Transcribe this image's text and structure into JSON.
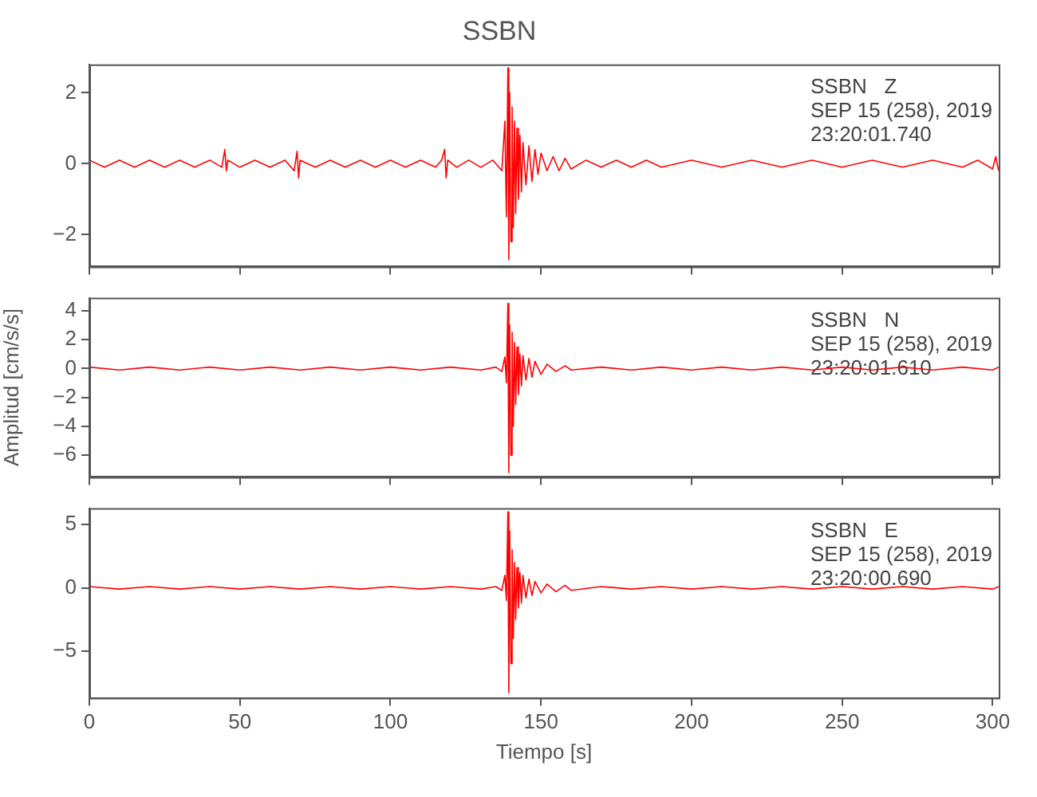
{
  "chart_data": [
    {
      "type": "line",
      "title": "SSBN",
      "marker": "none",
      "line_style": "solid",
      "legend": false,
      "grid": false,
      "tick_labels": "y",
      "xlim": [
        0,
        302
      ],
      "xticks": [
        0,
        50,
        100,
        150,
        200,
        250,
        300
      ],
      "ylim": [
        -2.9,
        2.8
      ],
      "yticks": [
        -2,
        0,
        2
      ],
      "annotations": [
        "SSBN   Z",
        "SEP 15 (258), 2019",
        "23:20:01.740"
      ],
      "series": [
        {
          "color": "#ff0000",
          "x": [
            0,
            5,
            10,
            15,
            20,
            25,
            30,
            35,
            40,
            44,
            45,
            45.5,
            46,
            50,
            55,
            60,
            65,
            68,
            69,
            69.5,
            70,
            75,
            80,
            85,
            90,
            95,
            100,
            105,
            110,
            115,
            117,
            118,
            118.5,
            119,
            122,
            126,
            130,
            134,
            137,
            138,
            138.5,
            139,
            139.3,
            139.6,
            140,
            140.4,
            140.8,
            141.2,
            141.6,
            142,
            142.5,
            143,
            143.5,
            144,
            145,
            146,
            147,
            148,
            149,
            150,
            152,
            154,
            156,
            158,
            160,
            165,
            170,
            175,
            180,
            185,
            190,
            200,
            210,
            220,
            230,
            240,
            250,
            260,
            270,
            280,
            290,
            295,
            300,
            301,
            302
          ],
          "values": [
            0.1,
            -0.1,
            0.1,
            -0.1,
            0.1,
            -0.1,
            0.1,
            -0.1,
            0.1,
            -0.1,
            0.4,
            -0.2,
            0.1,
            -0.1,
            0.1,
            -0.1,
            0.1,
            -0.2,
            0.35,
            -0.4,
            0.1,
            -0.1,
            0.1,
            -0.1,
            0.1,
            -0.1,
            0.1,
            -0.1,
            0.1,
            -0.1,
            0.1,
            0.4,
            -0.4,
            0.1,
            -0.1,
            0.1,
            -0.1,
            0.1,
            -0.2,
            1.2,
            -1.5,
            2.7,
            -2.7,
            2.0,
            -2.2,
            1.6,
            -1.8,
            1.2,
            -1.4,
            1.0,
            -1.0,
            0.8,
            -0.8,
            0.6,
            -0.6,
            0.5,
            -0.5,
            0.4,
            -0.3,
            0.3,
            -0.2,
            0.2,
            -0.2,
            0.15,
            -0.15,
            0.1,
            -0.1,
            0.1,
            -0.1,
            0.1,
            -0.1,
            0.1,
            -0.1,
            0.1,
            -0.1,
            0.1,
            -0.1,
            0.1,
            -0.1,
            0.1,
            -0.1,
            0.1,
            -0.15,
            0.2,
            -0.2
          ]
        }
      ]
    },
    {
      "type": "line",
      "ylabel": "Amplitud [cm/s/s]",
      "marker": "none",
      "line_style": "solid",
      "legend": false,
      "grid": false,
      "tick_labels": "y",
      "xlim": [
        0,
        302
      ],
      "xticks": [
        0,
        50,
        100,
        150,
        200,
        250,
        300
      ],
      "ylim": [
        -7.5,
        4.9
      ],
      "yticks": [
        -6,
        -4,
        -2,
        0,
        2,
        4
      ],
      "annotations": [
        "SSBN   N",
        "SEP 15 (258), 2019",
        "23:20:01.610"
      ],
      "series": [
        {
          "color": "#ff0000",
          "x": [
            0,
            10,
            20,
            30,
            40,
            50,
            60,
            70,
            80,
            90,
            100,
            110,
            120,
            130,
            135,
            137,
            138,
            138.5,
            139,
            139.3,
            139.6,
            140,
            140.4,
            140.8,
            141.2,
            141.6,
            142,
            142.5,
            143,
            143.5,
            144,
            145,
            146,
            147,
            148,
            150,
            152,
            155,
            158,
            160,
            170,
            180,
            190,
            200,
            210,
            220,
            230,
            240,
            250,
            260,
            270,
            280,
            290,
            300,
            302
          ],
          "values": [
            0.1,
            -0.1,
            0.1,
            -0.1,
            0.1,
            -0.1,
            0.1,
            -0.1,
            0.1,
            -0.1,
            0.1,
            -0.1,
            0.1,
            -0.1,
            0.1,
            -0.2,
            0.8,
            -1.0,
            4.5,
            -7.2,
            3.0,
            -6.0,
            2.5,
            -4.0,
            1.8,
            -2.5,
            1.5,
            -1.8,
            1.0,
            -1.2,
            0.9,
            -0.8,
            0.7,
            -0.6,
            0.5,
            -0.4,
            0.3,
            -0.2,
            0.2,
            -0.1,
            0.1,
            -0.1,
            0.1,
            -0.1,
            0.1,
            -0.1,
            0.1,
            -0.1,
            0.1,
            -0.1,
            0.1,
            -0.1,
            0.1,
            -0.1,
            0.1
          ]
        }
      ]
    },
    {
      "type": "line",
      "xlabel": "Tiempo [s]",
      "marker": "none",
      "line_style": "solid",
      "legend": false,
      "grid": false,
      "xlim": [
        0,
        302
      ],
      "xticks": [
        0,
        50,
        100,
        150,
        200,
        250,
        300
      ],
      "ylim": [
        -8.7,
        6.3
      ],
      "yticks": [
        -5,
        0,
        5
      ],
      "annotations": [
        "SSBN   E",
        "SEP 15 (258), 2019",
        "23:20:00.690"
      ],
      "series": [
        {
          "color": "#ff0000",
          "x": [
            0,
            10,
            20,
            30,
            40,
            50,
            60,
            70,
            80,
            90,
            100,
            110,
            120,
            130,
            135,
            137,
            138,
            138.5,
            139,
            139.3,
            139.6,
            140,
            140.4,
            140.8,
            141.2,
            141.6,
            142,
            142.5,
            143,
            143.5,
            144,
            145,
            146,
            147,
            148,
            150,
            152,
            155,
            158,
            160,
            170,
            180,
            190,
            200,
            210,
            220,
            230,
            240,
            250,
            260,
            270,
            280,
            290,
            300,
            302
          ],
          "values": [
            0.1,
            -0.1,
            0.1,
            -0.1,
            0.1,
            -0.1,
            0.1,
            -0.1,
            0.1,
            -0.1,
            0.1,
            -0.1,
            0.1,
            -0.1,
            0.1,
            -0.2,
            1.0,
            -1.0,
            6.0,
            -8.3,
            4.5,
            -6.0,
            3.0,
            -4.0,
            2.0,
            -2.5,
            1.6,
            -1.6,
            1.2,
            -1.2,
            1.0,
            -0.8,
            0.7,
            -0.6,
            0.5,
            -0.4,
            0.3,
            -0.3,
            0.2,
            -0.2,
            0.1,
            -0.1,
            0.1,
            -0.1,
            0.1,
            -0.1,
            0.1,
            -0.1,
            0.1,
            -0.1,
            0.1,
            -0.1,
            0.1,
            -0.1,
            0.1
          ]
        }
      ]
    }
  ]
}
